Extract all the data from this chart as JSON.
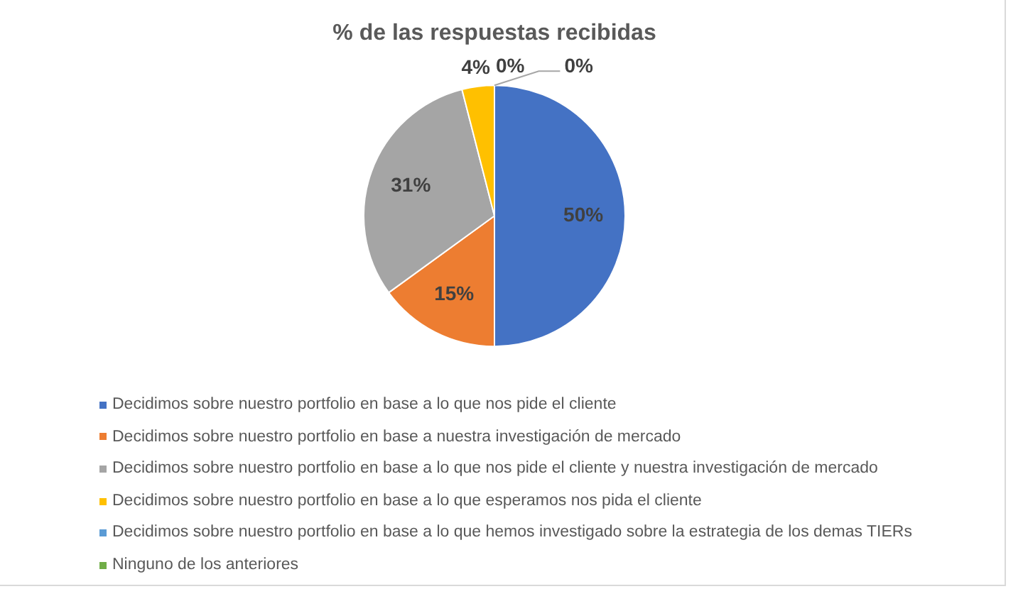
{
  "chart_data": {
    "type": "pie",
    "title": "% de las respuestas recibidas",
    "categories": [
      "Decidimos sobre nuestro portfolio en base a lo que nos pide el cliente",
      "Decidimos sobre nuestro portfolio en base a nuestra investigación de mercado",
      "Decidimos sobre nuestro portfolio en base a lo que nos pide el cliente y nuestra investigación de mercado",
      "Decidimos sobre nuestro portfolio en base a lo que esperamos nos pida el cliente",
      "Decidimos sobre nuestro portfolio en base a lo que hemos investigado sobre la estrategia de los demas TIERs",
      "Ninguno de los anteriores"
    ],
    "values": [
      50,
      15,
      31,
      4,
      0,
      0
    ],
    "colors": [
      "#4472c4",
      "#ed7d31",
      "#a5a5a5",
      "#ffc000",
      "#5b9bd5",
      "#70ad47"
    ],
    "value_labels": [
      "50%",
      "15%",
      "31%",
      "4%",
      "0%",
      "0%"
    ],
    "legend": "bottom"
  }
}
